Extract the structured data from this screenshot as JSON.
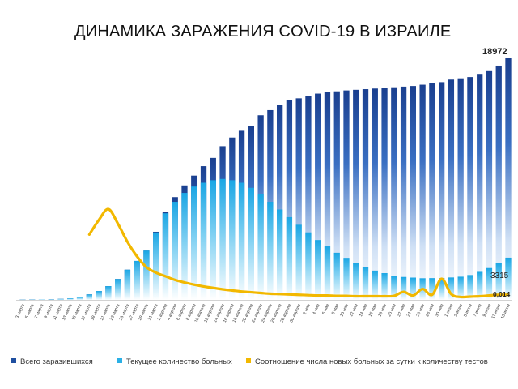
{
  "chart_data": {
    "type": "bar",
    "title": "ДИНАМИКА ЗАРАЖЕНИЯ COVID-19 В ИЗРАИЛЕ",
    "categories": [
      "3 марта",
      "5 марта",
      "7 марта",
      "9 марта",
      "11 марта",
      "13 марта",
      "15 марта",
      "17 марта",
      "19 марта",
      "21 марта",
      "23 марта",
      "25 марта",
      "27 марта",
      "29 марта",
      "31 марта",
      "2 апреля",
      "4 апреля",
      "6 апреля",
      "8 апреля",
      "10 апреля",
      "12 апреля",
      "14 апреля",
      "16 апреля",
      "18 апреля",
      "20 апреля",
      "22 апреля",
      "24 апреля",
      "26 апреля",
      "28 апреля",
      "30 апреля",
      "2 мая",
      "4 мая",
      "6 мая",
      "8 мая",
      "10 мая",
      "12 мая",
      "14 мая",
      "16 мая",
      "18 мая",
      "20 мая",
      "22 мая",
      "24 мая",
      "26 мая",
      "28 мая",
      "30 мая",
      "1 июня",
      "3 июня",
      "5 июня",
      "7 июня",
      "9 июня",
      "11 июня",
      "13 июня"
    ],
    "series": [
      {
        "name": "Всего заразившихся",
        "color": "#1f4fa0",
        "values": [
          12,
          20,
          30,
          45,
          75,
          125,
          230,
          430,
          700,
          1080,
          1640,
          2370,
          3060,
          3870,
          5350,
          6900,
          8070,
          8990,
          9760,
          10500,
          11150,
          12070,
          12750,
          13280,
          13650,
          14500,
          14900,
          15300,
          15680,
          15830,
          16000,
          16200,
          16300,
          16380,
          16450,
          16500,
          16550,
          16600,
          16650,
          16700,
          16750,
          16800,
          16900,
          17010,
          17100,
          17300,
          17400,
          17500,
          17750,
          18030,
          18400,
          18972
        ]
      },
      {
        "name": "Текущее количество больных",
        "color": "#2bb0e6",
        "values": [
          12,
          20,
          30,
          45,
          75,
          125,
          230,
          430,
          700,
          1080,
          1640,
          2370,
          3060,
          3870,
          5300,
          6800,
          7700,
          8400,
          8900,
          9200,
          9400,
          9500,
          9400,
          9200,
          8800,
          8300,
          7700,
          7100,
          6500,
          5900,
          5300,
          4700,
          4200,
          3700,
          3300,
          2900,
          2600,
          2300,
          2100,
          1900,
          1800,
          1750,
          1700,
          1710,
          1720,
          1760,
          1820,
          1950,
          2200,
          2500,
          2900,
          3315
        ]
      },
      {
        "name": "Соотношение числа новых больных за сутки к количеству тестов",
        "color": "#f2b800",
        "values": [
          null,
          null,
          null,
          null,
          null,
          null,
          null,
          0.18,
          0.22,
          0.25,
          0.21,
          0.16,
          0.12,
          0.09,
          0.075,
          0.065,
          0.055,
          0.048,
          0.042,
          0.037,
          0.033,
          0.029,
          0.026,
          0.023,
          0.021,
          0.019,
          0.017,
          0.016,
          0.015,
          0.014,
          0.013,
          0.012,
          0.012,
          0.011,
          0.011,
          0.01,
          0.01,
          0.01,
          0.01,
          0.011,
          0.022,
          0.012,
          0.03,
          0.014,
          0.058,
          0.016,
          0.008,
          0.009,
          0.01,
          0.012,
          0.014,
          0.014
        ]
      }
    ],
    "annotations": {
      "total_last": "18972",
      "current_last": "3315",
      "ratio_last": "0,014"
    },
    "legend": [
      "Всего заразившихся",
      "Текущее количество больных",
      "Соотношение числа новых больных за сутки к количеству тестов"
    ],
    "legend_position": "bottom",
    "grid": false
  }
}
